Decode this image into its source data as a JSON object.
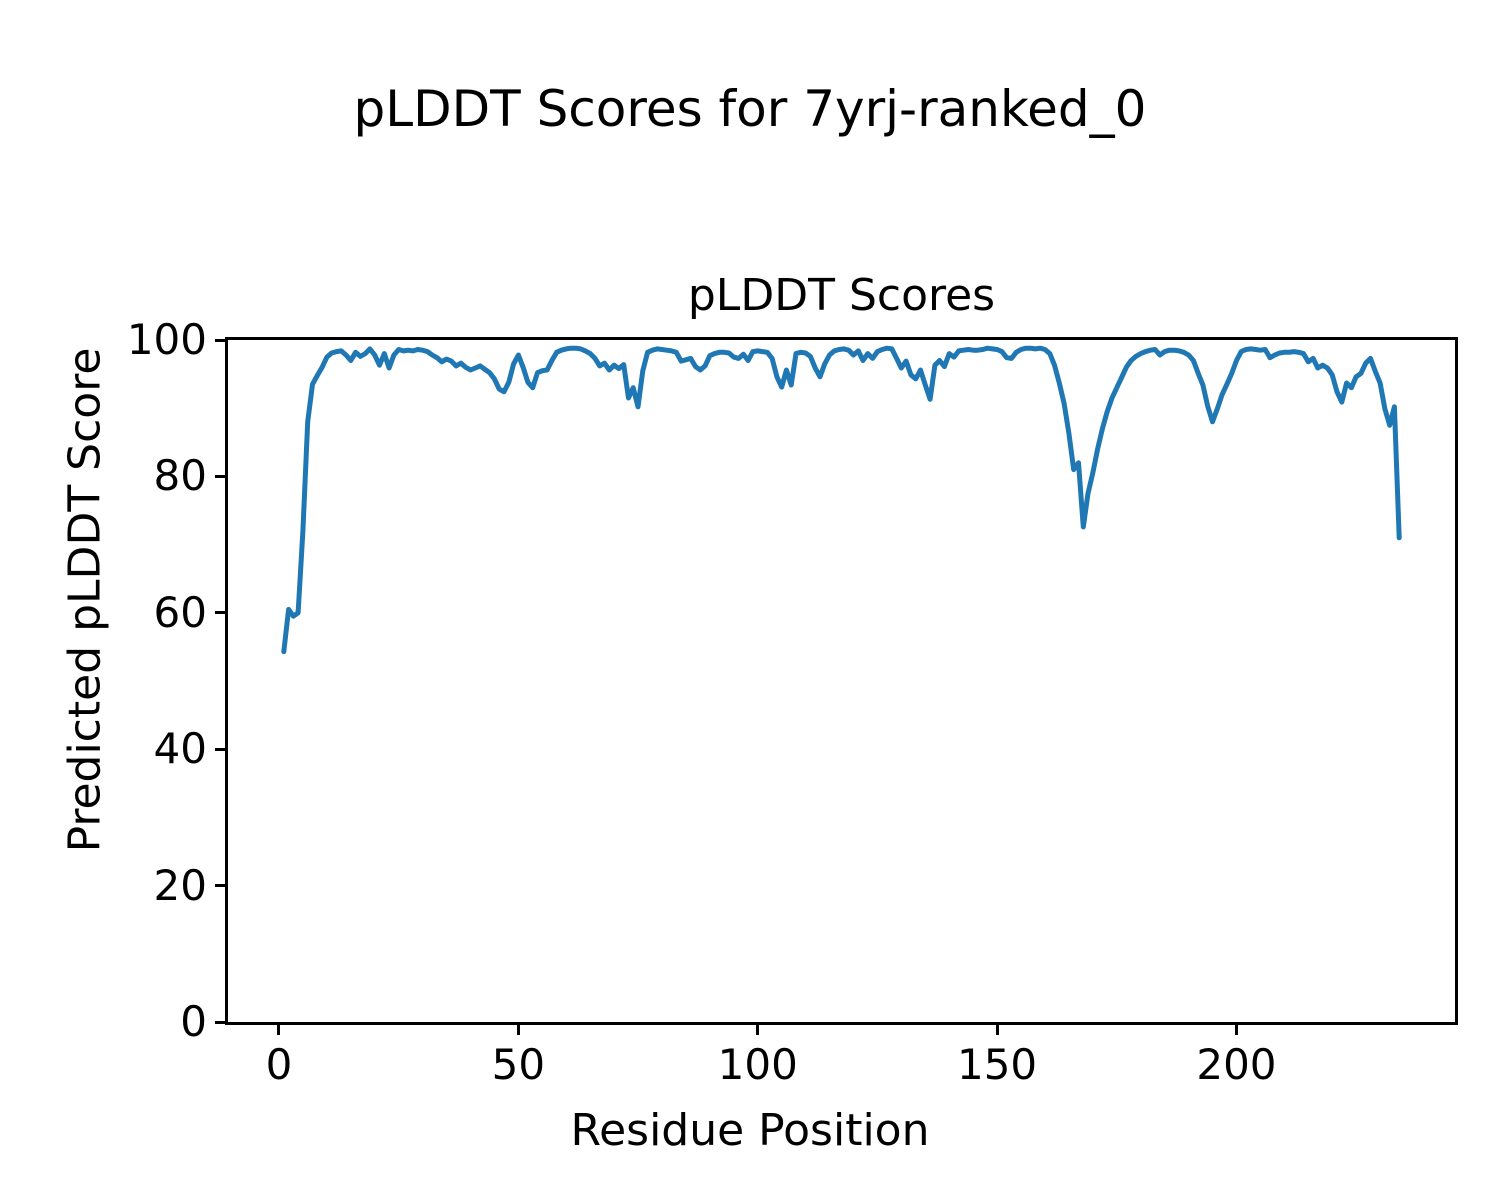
{
  "figure": {
    "suptitle": "pLDDT Scores for 7yrj-ranked_0",
    "background": "#ffffff"
  },
  "chart_data": {
    "type": "line",
    "title": "pLDDT Scores",
    "xlabel": "Residue Position",
    "ylabel": "Predicted pLDDT Score",
    "line_color": "#1f77b4",
    "line_width": 5,
    "grid": false,
    "legend": "none",
    "xlim": [
      -10.65,
      245.65
    ],
    "ylim": [
      0,
      100
    ],
    "x_ticks": [
      0,
      50,
      100,
      150,
      200
    ],
    "y_ticks": [
      0,
      20,
      40,
      60,
      80,
      100
    ],
    "x_start": 1,
    "x_step": 1,
    "values": [
      54.3,
      60.5,
      59.5,
      60.0,
      72.0,
      88.0,
      93.5,
      94.8,
      96.0,
      97.5,
      98.1,
      98.3,
      98.4,
      97.8,
      97.0,
      98.2,
      97.6,
      98.0,
      98.7,
      97.8,
      96.3,
      98.0,
      95.9,
      97.8,
      98.6,
      98.4,
      98.5,
      98.4,
      98.6,
      98.5,
      98.3,
      97.8,
      97.4,
      96.8,
      97.2,
      96.9,
      96.2,
      96.6,
      96.0,
      95.6,
      95.9,
      96.2,
      95.7,
      95.2,
      94.3,
      92.8,
      92.4,
      93.8,
      96.5,
      97.8,
      96.0,
      93.8,
      93.0,
      95.2,
      95.5,
      95.6,
      97.0,
      98.2,
      98.5,
      98.7,
      98.8,
      98.8,
      98.7,
      98.4,
      98.0,
      97.3,
      96.2,
      96.6,
      95.6,
      96.3,
      95.8,
      96.4,
      91.5,
      93.0,
      90.2,
      95.5,
      98.2,
      98.5,
      98.7,
      98.6,
      98.5,
      98.4,
      98.2,
      96.9,
      97.1,
      97.3,
      96.1,
      95.6,
      96.2,
      97.7,
      98.0,
      98.2,
      98.2,
      98.1,
      97.5,
      97.3,
      97.9,
      97.0,
      98.3,
      98.4,
      98.3,
      98.2,
      97.3,
      94.6,
      93.1,
      95.6,
      93.4,
      98.0,
      98.2,
      98.1,
      97.6,
      95.9,
      94.6,
      96.5,
      97.8,
      98.4,
      98.6,
      98.7,
      98.5,
      97.8,
      98.4,
      97.0,
      98.0,
      97.3,
      98.3,
      98.6,
      98.8,
      98.7,
      97.3,
      95.9,
      96.9,
      94.9,
      94.3,
      95.6,
      93.4,
      91.3,
      96.3,
      97.0,
      96.1,
      98.0,
      97.5,
      98.4,
      98.5,
      98.6,
      98.5,
      98.5,
      98.6,
      98.8,
      98.7,
      98.6,
      98.3,
      97.4,
      97.3,
      98.2,
      98.6,
      98.8,
      98.8,
      98.7,
      98.8,
      98.6,
      98.0,
      96.3,
      93.7,
      90.7,
      86.3,
      81.0,
      82.0,
      72.6,
      77.5,
      80.5,
      84.0,
      87.0,
      89.5,
      91.5,
      93.0,
      94.5,
      96.0,
      97.0,
      97.6,
      98.0,
      98.3,
      98.5,
      98.6,
      97.8,
      98.3,
      98.5,
      98.5,
      98.4,
      98.2,
      97.8,
      97.0,
      95.1,
      93.4,
      90.3,
      88.0,
      89.9,
      92.0,
      93.5,
      95.1,
      97.0,
      98.3,
      98.6,
      98.7,
      98.6,
      98.5,
      98.6,
      97.4,
      97.8,
      98.1,
      98.2,
      98.2,
      98.3,
      98.2,
      98.0,
      96.8,
      97.3,
      95.9,
      96.3,
      95.9,
      94.9,
      92.4,
      90.9,
      93.7,
      93.0,
      94.6,
      95.1,
      96.6,
      97.3,
      95.4,
      93.7,
      89.9,
      87.5,
      90.2,
      71.0
    ]
  }
}
